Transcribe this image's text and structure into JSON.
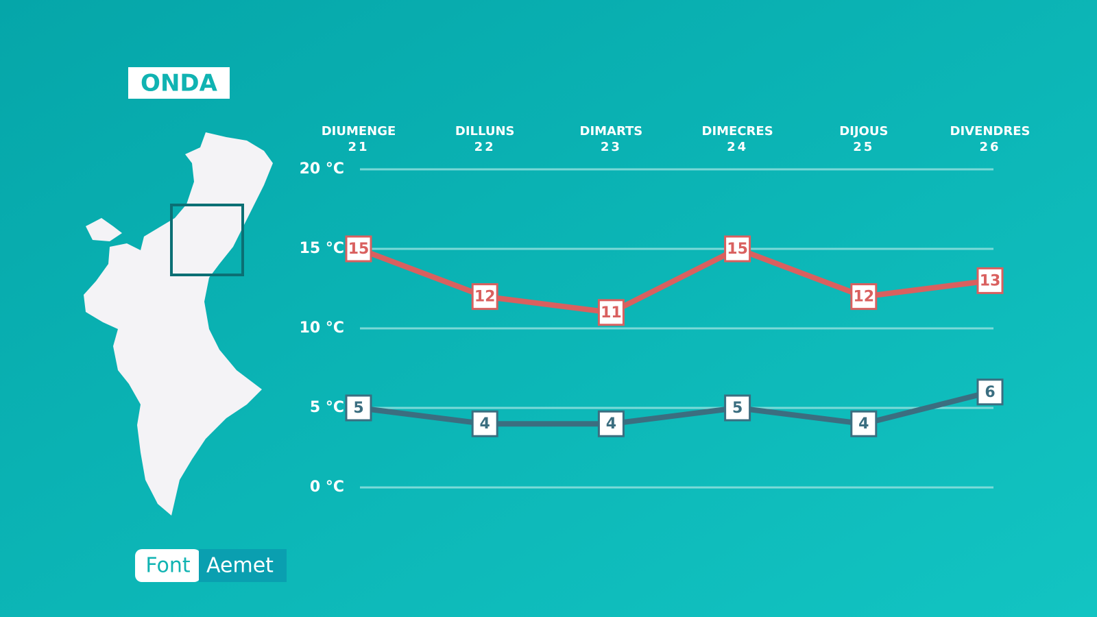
{
  "chart_data": {
    "type": "line",
    "location": "ONDA",
    "source_label": "Font",
    "source": "Aemet",
    "categories": [
      "DIUMENGE",
      "DILLUNS",
      "DIMARTS",
      "DIMECRES",
      "DIJOUS",
      "DIVENDRES"
    ],
    "day_numbers": [
      21,
      22,
      23,
      24,
      25,
      26
    ],
    "series": [
      {
        "color": "#d9605f",
        "values": [
          15,
          12,
          11,
          15,
          12,
          13
        ]
      },
      {
        "color": "#3b6e80",
        "values": [
          5,
          4,
          4,
          5,
          4,
          6
        ]
      }
    ],
    "ylim": [
      0,
      20
    ],
    "yticks": [
      {
        "value": 0,
        "label": "0 °C"
      },
      {
        "value": 5,
        "label": "5 °C"
      },
      {
        "value": 10,
        "label": "10 °C"
      },
      {
        "value": 15,
        "label": "15 °C"
      },
      {
        "value": 20,
        "label": "20 °C"
      }
    ],
    "grid": true
  }
}
